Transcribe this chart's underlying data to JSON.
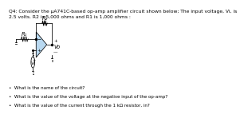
{
  "title_text": "Q4: Consider the μA741C-based op-amp amplifier circuit shown below; The input voltage, Vi, is\n2.5 volts. R2 is 5,000 ohms and R1 is 1,000 ohms :",
  "R1_label": "R₁",
  "R2_label": "R₂",
  "Vo_label": "Vo",
  "Vi_label": "Vi",
  "q1": "•  What is the name of the circuit?",
  "q2": "•  What is the value of the voltage at the negative input of the op-amp?",
  "q3": "•  What is the value of the current through the 1 kΩ resistor, in?",
  "bg_color": "#ffffff",
  "triangle_fill": "#b8d8f0",
  "triangle_edge": "#000000",
  "text_color": "#000000",
  "title_fontsize": 4.3,
  "label_fontsize": 4.8,
  "question_fontsize": 4.0,
  "circuit_lw": 0.55
}
